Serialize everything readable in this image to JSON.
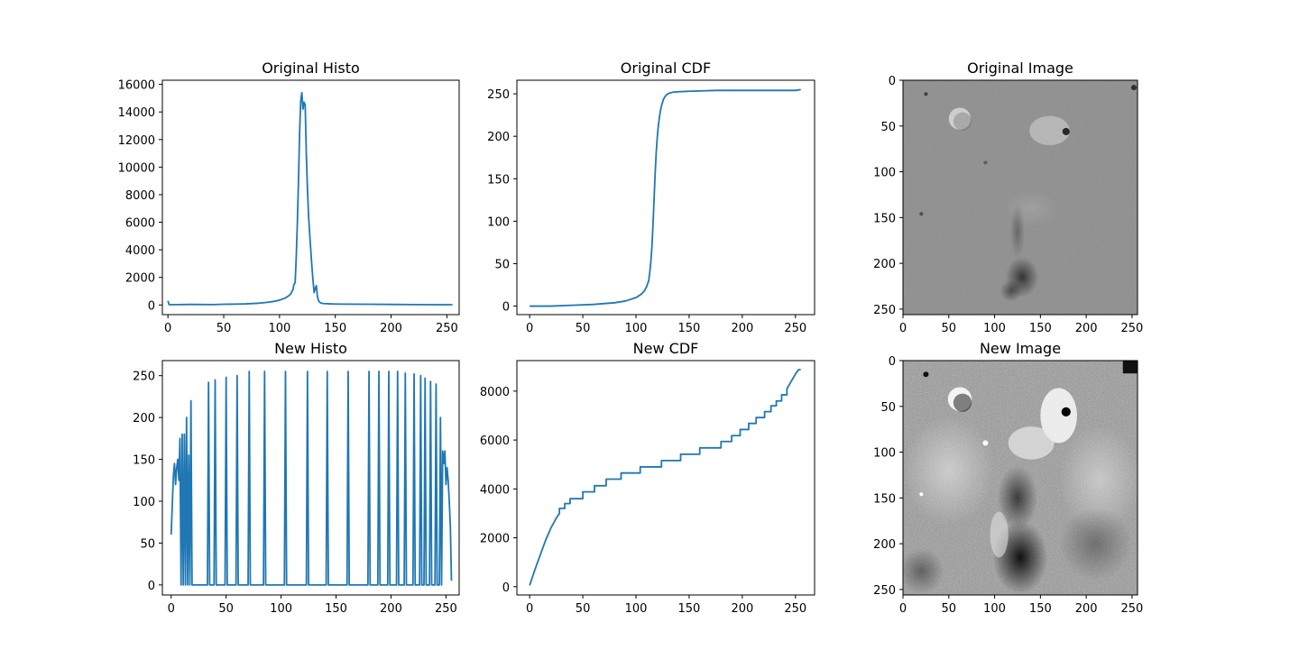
{
  "figure": {
    "title": ""
  },
  "colors": {
    "series": "#1f77b4",
    "axes": "#000000",
    "background": "#ffffff"
  },
  "chart_data": [
    {
      "id": "original-histo",
      "type": "line",
      "title": "Original Histo",
      "xlabel": "",
      "ylabel": "",
      "xlim": [
        -5,
        261
      ],
      "ylim": [
        -700,
        16300
      ],
      "xticks": [
        0,
        50,
        100,
        150,
        200,
        250
      ],
      "yticks": [
        0,
        2000,
        4000,
        6000,
        8000,
        10000,
        12000,
        14000,
        16000
      ],
      "grid": false,
      "series": [
        {
          "x": [
            0,
            1,
            2,
            10,
            20,
            40,
            50,
            60,
            70,
            80,
            90,
            95,
            100,
            105,
            108,
            110,
            112,
            113,
            114,
            115,
            116,
            117,
            118,
            119,
            120,
            121,
            122,
            123,
            124,
            125,
            126,
            127,
            128,
            129,
            130,
            131,
            132,
            133,
            134,
            135,
            136,
            137,
            138,
            140,
            145,
            150,
            160,
            180,
            200,
            220,
            240,
            255
          ],
          "y": [
            300,
            30,
            20,
            30,
            40,
            30,
            50,
            60,
            80,
            120,
            200,
            260,
            350,
            500,
            650,
            800,
            1100,
            1500,
            1600,
            3500,
            6000,
            9000,
            12500,
            14800,
            15400,
            14200,
            14700,
            14500,
            11000,
            8500,
            6500,
            5200,
            4000,
            2800,
            1800,
            900,
            1200,
            1400,
            600,
            300,
            200,
            150,
            120,
            100,
            80,
            70,
            60,
            50,
            40,
            30,
            20,
            20
          ]
        }
      ]
    },
    {
      "id": "original-cdf",
      "type": "line",
      "title": "Original CDF",
      "xlabel": "",
      "ylabel": "",
      "xlim": [
        -12,
        268
      ],
      "ylim": [
        -10,
        266
      ],
      "xticks": [
        0,
        50,
        100,
        150,
        200,
        250
      ],
      "yticks": [
        0,
        50,
        100,
        150,
        200,
        250
      ],
      "grid": false,
      "series": [
        {
          "x": [
            0,
            20,
            40,
            60,
            80,
            90,
            100,
            105,
            108,
            110,
            112,
            113,
            114,
            115,
            116,
            117,
            118,
            119,
            120,
            121,
            122,
            123,
            124,
            125,
            126,
            127,
            128,
            130,
            132,
            135,
            140,
            150,
            175,
            200,
            250,
            255
          ],
          "y": [
            0,
            0,
            1,
            2,
            4,
            6,
            10,
            14,
            18,
            23,
            30,
            40,
            52,
            70,
            95,
            125,
            155,
            180,
            198,
            212,
            222,
            230,
            236,
            240,
            244,
            246,
            248,
            250,
            251,
            252,
            252.5,
            253,
            254,
            254,
            254,
            255
          ]
        }
      ]
    },
    {
      "id": "original-image",
      "type": "image",
      "title": "Original Image",
      "xlim": [
        0,
        255
      ],
      "ylim": [
        255,
        0
      ],
      "xticks": [
        0,
        50,
        100,
        150,
        200,
        250
      ],
      "yticks": [
        0,
        50,
        100,
        150,
        200,
        250
      ],
      "description_features": "grayscale lunar surface, low contrast"
    },
    {
      "id": "new-histo",
      "type": "line",
      "title": "New Histo",
      "xlabel": "",
      "ylabel": "",
      "xlim": [
        -8,
        262
      ],
      "ylim": [
        -12,
        268
      ],
      "xticks": [
        0,
        50,
        100,
        150,
        200,
        250
      ],
      "yticks": [
        0,
        50,
        100,
        150,
        200,
        250
      ],
      "grid": false,
      "series": [
        {
          "x": [
            0,
            2,
            3,
            4,
            5,
            6,
            7,
            8,
            9,
            10,
            11,
            12,
            13,
            14,
            15,
            16,
            17,
            18,
            19,
            20,
            21,
            22,
            23,
            24,
            25,
            26,
            27,
            28,
            33,
            34,
            35,
            39,
            40,
            41,
            49,
            50,
            51,
            59,
            60,
            61,
            70,
            71,
            72,
            84,
            85,
            86,
            103,
            104,
            105,
            123,
            124,
            125,
            141,
            142,
            143,
            160,
            161,
            162,
            179,
            180,
            181,
            188,
            189,
            190,
            197,
            198,
            199,
            205,
            206,
            207,
            212,
            213,
            214,
            220,
            221,
            222,
            226,
            227,
            228,
            230,
            231,
            232,
            235,
            236,
            237,
            240,
            241,
            242,
            244,
            245,
            246,
            247,
            248,
            249,
            250,
            251,
            252,
            253,
            254,
            255
          ],
          "y": [
            60,
            130,
            145,
            120,
            140,
            150,
            125,
            175,
            0,
            180,
            0,
            180,
            0,
            200,
            0,
            155,
            0,
            220,
            0,
            0,
            0,
            0,
            0,
            0,
            0,
            0,
            0,
            0,
            0,
            242,
            0,
            0,
            245,
            0,
            0,
            248,
            0,
            0,
            250,
            0,
            0,
            255,
            0,
            0,
            255,
            0,
            0,
            255,
            0,
            0,
            255,
            0,
            0,
            255,
            0,
            0,
            255,
            0,
            0,
            255,
            0,
            0,
            255,
            0,
            0,
            255,
            0,
            0,
            255,
            0,
            0,
            253,
            0,
            0,
            252,
            0,
            0,
            250,
            0,
            0,
            247,
            0,
            0,
            243,
            0,
            0,
            240,
            0,
            0,
            200,
            0,
            160,
            145,
            160,
            120,
            140,
            125,
            100,
            70,
            5
          ]
        }
      ]
    },
    {
      "id": "new-cdf",
      "type": "line",
      "title": "New CDF",
      "xlabel": "",
      "ylabel": "",
      "xlim": [
        -12,
        268
      ],
      "ylim": [
        -340,
        9250
      ],
      "xticks": [
        0,
        50,
        100,
        150,
        200,
        250
      ],
      "yticks": [
        0,
        2000,
        4000,
        6000,
        8000
      ],
      "grid": false,
      "series": [
        {
          "x": [
            0,
            5,
            10,
            15,
            20,
            25,
            28,
            28,
            33,
            33,
            38,
            38,
            50,
            50,
            61,
            61,
            72,
            72,
            86,
            86,
            104,
            104,
            124,
            124,
            142,
            142,
            160,
            160,
            180,
            180,
            190,
            190,
            198,
            198,
            206,
            206,
            213,
            213,
            221,
            221,
            227,
            227,
            232,
            232,
            237,
            237,
            242,
            242,
            246,
            250,
            253,
            255
          ],
          "y": [
            50,
            700,
            1300,
            1900,
            2400,
            2800,
            3000,
            3200,
            3200,
            3400,
            3400,
            3600,
            3600,
            3880,
            3880,
            4130,
            4130,
            4400,
            4400,
            4650,
            4650,
            4900,
            4900,
            5160,
            5160,
            5420,
            5420,
            5680,
            5680,
            5940,
            5940,
            6180,
            6180,
            6430,
            6430,
            6680,
            6680,
            6920,
            6920,
            7160,
            7160,
            7400,
            7400,
            7600,
            7600,
            7850,
            7850,
            8100,
            8400,
            8700,
            8880,
            8880
          ]
        }
      ]
    },
    {
      "id": "new-image",
      "type": "image",
      "title": "New Image",
      "xlim": [
        0,
        255
      ],
      "ylim": [
        255,
        0
      ],
      "xticks": [
        0,
        50,
        100,
        150,
        200,
        250
      ],
      "yticks": [
        0,
        50,
        100,
        150,
        200,
        250
      ],
      "description_features": "grayscale lunar surface, high contrast equalized"
    }
  ]
}
